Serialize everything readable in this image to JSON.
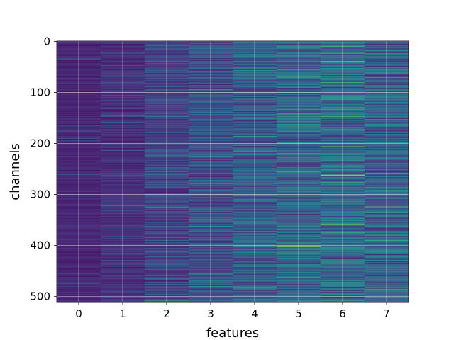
{
  "chart_data": {
    "type": "heatmap",
    "title": "",
    "xlabel": "features",
    "ylabel": "channels",
    "x_categories": [
      "0",
      "1",
      "2",
      "3",
      "4",
      "5",
      "6",
      "7"
    ],
    "y_ticks": [
      0,
      100,
      200,
      300,
      400,
      500
    ],
    "y_range": [
      0,
      512
    ],
    "y_inverted": true,
    "grid": true,
    "colormap": "viridis",
    "column_intensity": [
      0.1,
      0.13,
      0.2,
      0.24,
      0.28,
      0.32,
      0.33,
      0.3
    ],
    "column_variation": [
      0.05,
      0.07,
      0.12,
      0.15,
      0.17,
      0.2,
      0.21,
      0.19
    ],
    "highlights": [
      {
        "feature": 5,
        "channel": 402,
        "value": 0.95
      },
      {
        "feature": 6,
        "channel": 262,
        "value": 0.92
      },
      {
        "feature": 6,
        "channel": 216,
        "value": 0.55
      },
      {
        "feature": 6,
        "channel": 220,
        "value": 0.55
      },
      {
        "feature": 6,
        "channel": 86,
        "value": 0.58
      },
      {
        "feature": 5,
        "channel": 163,
        "value": 0.55
      },
      {
        "feature": 5,
        "channel": 60,
        "value": 0.52
      }
    ]
  }
}
